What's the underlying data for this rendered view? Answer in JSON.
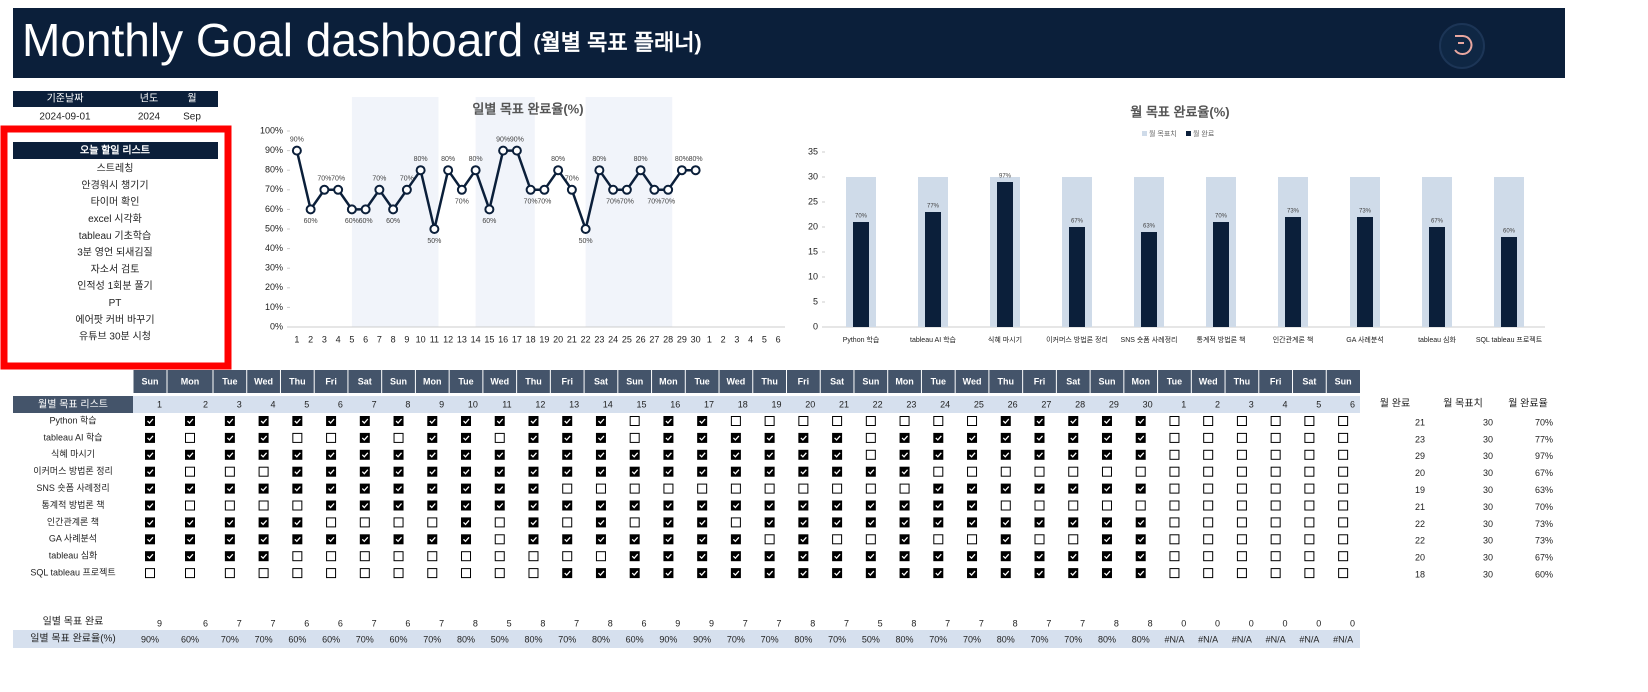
{
  "header": {
    "title": "Monthly Goal dashboard",
    "subtitle": "(월별 목표 플래너)"
  },
  "date_table": {
    "headers": [
      "기준날짜",
      "년도",
      "월"
    ],
    "values": [
      "2024-09-01",
      2024,
      "Sep"
    ]
  },
  "todo": {
    "title": "오늘 할일 리스트",
    "items": [
      "스트레칭",
      "안경워시 챙기기",
      "타이머 확인",
      "excel 시각화",
      "tableau 기초학습",
      "3분 영언 되새김질",
      "자소서 검토",
      "인적성 1회분 풀기",
      "PT",
      "에어팟 커버 바꾸기",
      "유튜브 30분 시청"
    ]
  },
  "chart_data": [
    {
      "type": "line",
      "title": "일별 목표 완료율(%)",
      "color": "#0b1f3a",
      "categories": [
        1,
        2,
        3,
        4,
        5,
        6,
        7,
        8,
        9,
        10,
        11,
        12,
        13,
        14,
        15,
        16,
        17,
        18,
        19,
        20,
        21,
        22,
        23,
        24,
        25,
        26,
        27,
        28,
        29,
        30,
        1,
        2,
        3,
        4,
        5,
        6
      ],
      "values": [
        90,
        60,
        70,
        70,
        60,
        60,
        70,
        60,
        70,
        80,
        50,
        80,
        70,
        80,
        60,
        90,
        90,
        70,
        70,
        80,
        70,
        50,
        80,
        70,
        70,
        80,
        70,
        70,
        80,
        80,
        null,
        null,
        null,
        null,
        null,
        null
      ],
      "value_labels": [
        "90%",
        "60%",
        "70%",
        "70%",
        "60%",
        "60%",
        "70%",
        "60%",
        "70%",
        "80%",
        "50%",
        "80%",
        "70%",
        "80%",
        "60%",
        "90%",
        "90%",
        "70%",
        "70%",
        "80%",
        "70%",
        "50%",
        "80%",
        "70%",
        "70%",
        "80%",
        "70%",
        "70%",
        "80%",
        "80%",
        null,
        null,
        null,
        null,
        null,
        null
      ],
      "ylim": [
        0,
        100
      ],
      "yticks": [
        {
          "value": 0,
          "label": "0%"
        },
        {
          "value": 10,
          "label": "10%"
        },
        {
          "value": 20,
          "label": "20%"
        },
        {
          "value": 30,
          "label": "30%"
        },
        {
          "value": 40,
          "label": "40%"
        },
        {
          "value": 50,
          "label": "50%"
        },
        {
          "value": 60,
          "label": "60%"
        },
        {
          "value": 70,
          "label": "70%"
        },
        {
          "value": 80,
          "label": "80%"
        },
        {
          "value": 90,
          "label": "90%"
        },
        {
          "value": 100,
          "label": "100%"
        }
      ],
      "grid": false
    },
    {
      "type": "bar",
      "title": "월 목표 완료율(%)",
      "legend": "top",
      "categories": [
        "Python 학습",
        "tableau AI 학습",
        "식혜 마시기",
        "이커머스 방법론 정리",
        "SNS 숏폼 사례정리",
        "통계적 방법론 책",
        "인간관계론 책",
        "GA 사례분석",
        "tableau 심화",
        "SQL tableau 프로젝트"
      ],
      "series": [
        {
          "name": "월 목표치",
          "color": "#cfdbe9",
          "values": [
            30,
            30,
            30,
            30,
            30,
            30,
            30,
            30,
            30,
            30
          ]
        },
        {
          "name": "월 완료",
          "color": "#0b1f3a",
          "values": [
            21,
            23,
            29,
            20,
            19,
            21,
            22,
            22,
            20,
            18
          ]
        }
      ],
      "data_labels": [
        "70%",
        "77%",
        "97%",
        "67%",
        "63%",
        "70%",
        "73%",
        "73%",
        "67%",
        "60%"
      ],
      "ylim": [
        0,
        35
      ],
      "yticks": [
        0,
        5,
        10,
        15,
        20,
        25,
        30,
        35
      ],
      "grid": false
    }
  ],
  "planner": {
    "list_title": "월별 목표 리스트",
    "weekdays": [
      "Sun",
      "Mon",
      "Tue",
      "Wed",
      "Thu",
      "Fri",
      "Sat",
      "Sun",
      "Mon",
      "Tue",
      "Wed",
      "Thu",
      "Fri",
      "Sat",
      "Sun",
      "Mon",
      "Tue",
      "Wed",
      "Thu",
      "Fri",
      "Sat",
      "Sun",
      "Mon",
      "Tue",
      "Wed",
      "Thu",
      "Fri",
      "Sat",
      "Sun",
      "Mon",
      "Tue",
      "Wed",
      "Thu",
      "Fri",
      "Sat",
      "Sun"
    ],
    "days": [
      1,
      2,
      3,
      4,
      5,
      6,
      7,
      8,
      9,
      10,
      11,
      12,
      13,
      14,
      15,
      16,
      17,
      18,
      19,
      20,
      21,
      22,
      23,
      24,
      25,
      26,
      27,
      28,
      29,
      30,
      1,
      2,
      3,
      4,
      5,
      6
    ],
    "goals": [
      "Python 학습",
      "tableau AI 학습",
      "식혜 마시기",
      "이커머스 방법론 정리",
      "SNS 숏폼 사례정리",
      "통계적 방법론 책",
      "인간관계론 책",
      "GA 사례분석",
      "tableau 심화",
      "SQL tableau 프로젝트"
    ],
    "checked": [
      [
        1,
        1,
        1,
        1,
        1,
        1,
        1,
        1,
        1,
        1,
        1,
        1,
        1,
        1,
        0,
        1,
        1,
        0,
        0,
        0,
        0,
        0,
        0,
        0,
        0,
        1,
        1,
        1,
        1,
        1,
        0,
        0,
        0,
        0,
        0,
        0
      ],
      [
        1,
        0,
        1,
        1,
        0,
        0,
        1,
        0,
        1,
        1,
        0,
        1,
        1,
        1,
        0,
        1,
        1,
        1,
        1,
        1,
        1,
        0,
        1,
        1,
        1,
        1,
        1,
        1,
        1,
        1,
        0,
        0,
        0,
        0,
        0,
        0
      ],
      [
        1,
        1,
        1,
        1,
        1,
        1,
        1,
        1,
        1,
        1,
        1,
        1,
        1,
        1,
        1,
        1,
        1,
        1,
        1,
        1,
        1,
        0,
        1,
        1,
        1,
        1,
        1,
        1,
        1,
        1,
        0,
        0,
        0,
        0,
        0,
        0
      ],
      [
        1,
        0,
        0,
        0,
        1,
        1,
        1,
        1,
        1,
        1,
        1,
        1,
        1,
        1,
        1,
        1,
        1,
        1,
        1,
        1,
        1,
        1,
        1,
        0,
        0,
        0,
        0,
        0,
        0,
        0,
        0,
        0,
        0,
        0,
        0,
        0
      ],
      [
        1,
        1,
        1,
        1,
        1,
        1,
        1,
        1,
        1,
        1,
        1,
        1,
        0,
        0,
        0,
        0,
        0,
        0,
        0,
        0,
        0,
        0,
        0,
        1,
        1,
        1,
        1,
        1,
        1,
        1,
        0,
        0,
        0,
        0,
        0,
        0
      ],
      [
        1,
        0,
        0,
        0,
        0,
        1,
        1,
        1,
        1,
        1,
        1,
        1,
        1,
        1,
        1,
        1,
        1,
        1,
        1,
        1,
        1,
        1,
        1,
        1,
        1,
        0,
        0,
        0,
        0,
        0,
        0,
        0,
        0,
        0,
        0,
        0
      ],
      [
        1,
        1,
        1,
        1,
        1,
        0,
        0,
        0,
        0,
        1,
        0,
        1,
        0,
        1,
        0,
        1,
        1,
        0,
        1,
        1,
        1,
        1,
        1,
        1,
        1,
        1,
        1,
        1,
        1,
        1,
        0,
        0,
        0,
        0,
        0,
        0
      ],
      [
        1,
        1,
        1,
        1,
        1,
        1,
        1,
        1,
        1,
        1,
        0,
        1,
        1,
        1,
        1,
        1,
        1,
        1,
        0,
        1,
        0,
        0,
        1,
        0,
        0,
        1,
        0,
        0,
        1,
        1,
        0,
        0,
        0,
        0,
        0,
        0
      ],
      [
        1,
        1,
        1,
        1,
        0,
        0,
        0,
        0,
        0,
        0,
        0,
        0,
        0,
        0,
        1,
        1,
        1,
        1,
        1,
        1,
        1,
        1,
        1,
        1,
        1,
        1,
        1,
        1,
        1,
        1,
        0,
        0,
        0,
        0,
        0,
        0
      ],
      [
        0,
        0,
        0,
        0,
        0,
        0,
        0,
        0,
        0,
        0,
        0,
        0,
        1,
        1,
        1,
        1,
        1,
        1,
        1,
        1,
        1,
        1,
        1,
        1,
        1,
        1,
        1,
        1,
        1,
        1,
        0,
        0,
        0,
        0,
        0,
        0
      ]
    ],
    "summary_headers": [
      "월 완료",
      "월 목표치",
      "월 완료율"
    ],
    "done": [
      21,
      23,
      29,
      20,
      19,
      21,
      22,
      22,
      20,
      18
    ],
    "targets": [
      30,
      30,
      30,
      30,
      30,
      30,
      30,
      30,
      30,
      30
    ],
    "rates": [
      "70%",
      "77%",
      "97%",
      "67%",
      "63%",
      "70%",
      "73%",
      "73%",
      "67%",
      "60%"
    ],
    "daily_done_label": "일별 목표 완료",
    "daily_done": [
      9,
      6,
      7,
      7,
      6,
      6,
      7,
      6,
      7,
      8,
      5,
      8,
      7,
      8,
      6,
      9,
      9,
      7,
      7,
      8,
      7,
      5,
      8,
      7,
      7,
      8,
      7,
      7,
      8,
      8,
      0,
      0,
      0,
      0,
      0,
      0
    ],
    "daily_rate_label": "일별 목표 완료율(%)",
    "daily_rates": [
      "90%",
      "60%",
      "70%",
      "70%",
      "60%",
      "60%",
      "70%",
      "60%",
      "70%",
      "80%",
      "50%",
      "80%",
      "70%",
      "80%",
      "60%",
      "90%",
      "90%",
      "70%",
      "70%",
      "80%",
      "70%",
      "50%",
      "80%",
      "70%",
      "70%",
      "80%",
      "70%",
      "70%",
      "80%",
      "80%",
      "#N/A",
      "#N/A",
      "#N/A",
      "#N/A",
      "#N/A",
      "#N/A"
    ]
  }
}
